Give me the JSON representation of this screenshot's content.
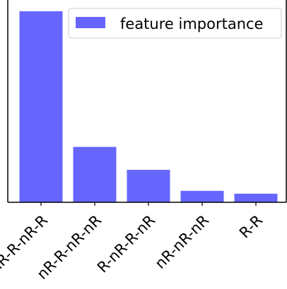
{
  "chart_data": {
    "type": "bar",
    "categories": [
      "nR-R-nR-R",
      "nR-R-nR-nR",
      "R-nR-R-nR",
      "nR-nR-nR",
      "R-R"
    ],
    "series": [
      {
        "name": "feature importance",
        "values": [
          1.0,
          0.29,
          0.17,
          0.06,
          0.045
        ],
        "color": "#6666ff"
      }
    ],
    "ylim": [
      0,
      1.0
    ],
    "grid": false,
    "y_ticks_visible": false,
    "legend": {
      "position": "top-right"
    }
  }
}
